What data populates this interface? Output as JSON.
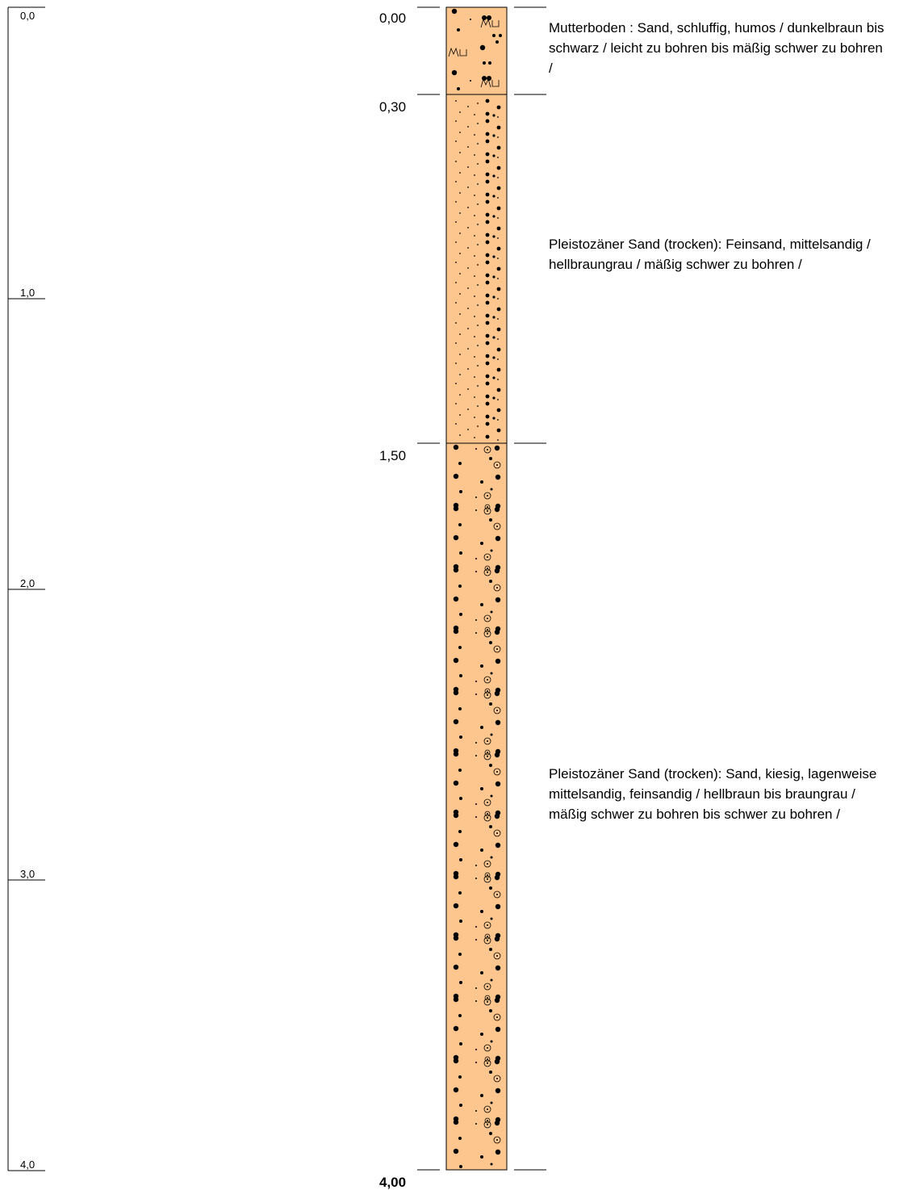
{
  "scale": {
    "max_depth_m": 4.0,
    "ticks": [
      {
        "value": 0.0,
        "label": "0,0"
      },
      {
        "value": 1.0,
        "label": "1,0"
      },
      {
        "value": 2.0,
        "label": "2,0"
      },
      {
        "value": 3.0,
        "label": "3,0"
      },
      {
        "value": 4.0,
        "label": "4,0"
      }
    ]
  },
  "column": {
    "fill_color": "#fcc68e",
    "border_color": "#000000"
  },
  "layers": [
    {
      "top_m": 0.0,
      "bottom_m": 0.3,
      "pattern": "topsoil",
      "description": "Mutterboden : Sand, schluffig, humos / dunkelbraun bis schwarz  / leicht zu bohren bis mäßig schwer zu bohren /"
    },
    {
      "top_m": 0.3,
      "bottom_m": 1.5,
      "pattern": "fine-sand",
      "description": "Pleistozäner Sand (trocken): Feinsand, mittelsandig / hellbraungrau  / mäßig schwer zu bohren /"
    },
    {
      "top_m": 1.5,
      "bottom_m": 4.0,
      "pattern": "gravelly-sand",
      "description": "Pleistozäner Sand (trocken): Sand, kiesig, lagenweise mittelsandig, feinsandig / hellbraun bis braungrau  / mäßig schwer zu bohren bis schwer zu bohren /"
    }
  ],
  "boundaries": [
    {
      "depth_m": 0.0,
      "label": "0,00"
    },
    {
      "depth_m": 0.3,
      "label": "0,30"
    },
    {
      "depth_m": 1.5,
      "label": "1,50"
    },
    {
      "depth_m": 4.0,
      "label": "4,00",
      "final": true
    }
  ],
  "topsoil_symbol": "Mu"
}
